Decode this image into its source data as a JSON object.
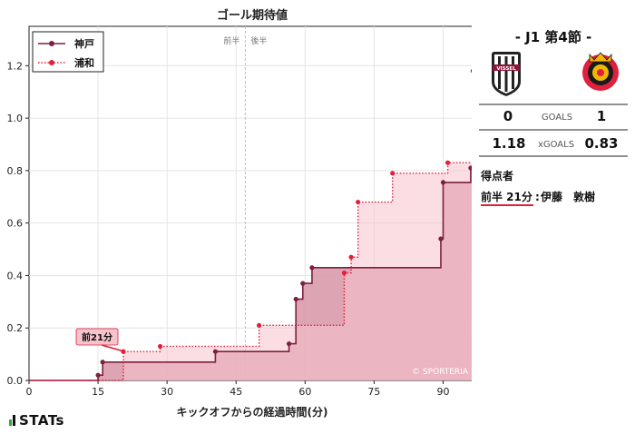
{
  "chart_data": {
    "type": "line",
    "step": true,
    "title": "ゴール期待値",
    "xlabel": "キックオフからの経過時間(分)",
    "ylabel": "",
    "xlim": [
      0,
      97
    ],
    "ylim": [
      0,
      1.35
    ],
    "x_ticks": [
      0,
      15,
      30,
      45,
      60,
      75,
      90
    ],
    "y_ticks": [
      0.0,
      0.2,
      0.4,
      0.6,
      0.8,
      1.0,
      1.2
    ],
    "half_labels": [
      "前半",
      "後半"
    ],
    "half_time_x": 47,
    "legend_position": "top-left",
    "watermark": "© SPORTERIA",
    "annotation": {
      "text": "前21分",
      "x": 20.5,
      "y": 0.11
    },
    "series": [
      {
        "name": "神戸",
        "color": "#7d1f3e",
        "fill": "#d99aab",
        "style": "solid",
        "points": [
          [
            0,
            0
          ],
          [
            15,
            0.02
          ],
          [
            16,
            0.07
          ],
          [
            40.5,
            0.11
          ],
          [
            56.5,
            0.14
          ],
          [
            58,
            0.31
          ],
          [
            59.5,
            0.37
          ],
          [
            61.5,
            0.43
          ],
          [
            89.5,
            0.54
          ],
          [
            90,
            0.755
          ],
          [
            96,
            0.81
          ],
          [
            96.5,
            1.18
          ],
          [
            97,
            1.18
          ]
        ]
      },
      {
        "name": "浦和",
        "color": "#e0203c",
        "fill": "#f6c3cc",
        "style": "dotted",
        "points": [
          [
            0,
            0
          ],
          [
            20.5,
            0.11
          ],
          [
            28.5,
            0.13
          ],
          [
            50,
            0.21
          ],
          [
            68.5,
            0.41
          ],
          [
            70,
            0.47
          ],
          [
            71.5,
            0.68
          ],
          [
            79,
            0.79
          ],
          [
            91,
            0.83
          ],
          [
            97,
            0.83
          ]
        ]
      }
    ]
  },
  "match": {
    "title": "- J1 第4節 -",
    "home_goals": "0",
    "away_goals": "1",
    "goals_label": "GOALS",
    "home_xg": "1.18",
    "away_xg": "0.83",
    "xg_label": "xGOALS",
    "scorers_heading": "得点者",
    "scorer_time": "前半 21分",
    "scorer_sep": ":",
    "scorer_name": "伊藤　敦樹",
    "home_crest_text": "VISSEL",
    "home_crest_color": "#8a1538",
    "away_crest_color": "#e0203c"
  },
  "brand": {
    "logo": "STATs"
  }
}
